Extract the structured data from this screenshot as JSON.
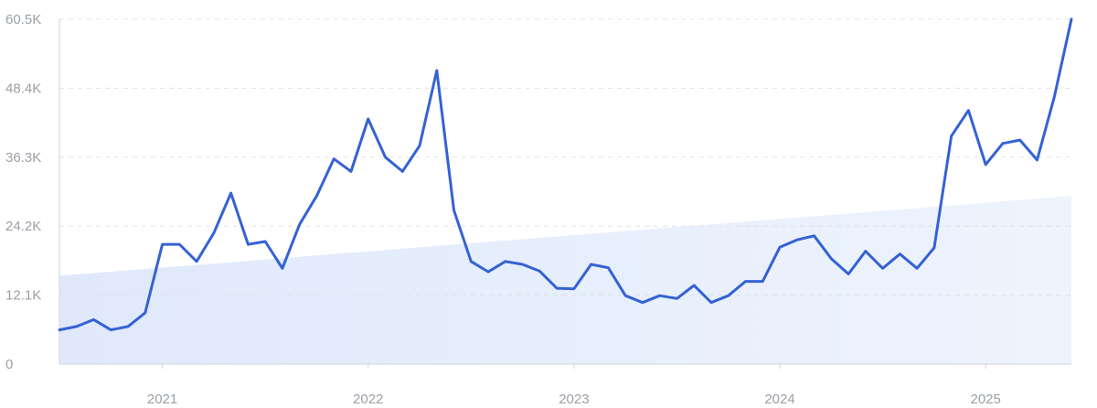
{
  "chart_data": {
    "type": "line",
    "title": "",
    "xlabel": "",
    "ylabel": "",
    "ylim": [
      0,
      60500
    ],
    "y_tick_labels": [
      "0",
      "12.1K",
      "24.2K",
      "36.3K",
      "48.4K",
      "60.5K"
    ],
    "y_tick_values": [
      0,
      12100,
      24200,
      36300,
      48400,
      60500
    ],
    "x_tick_labels": [
      "2021",
      "2022",
      "2023",
      "2024",
      "2025"
    ],
    "x_tick_values": [
      "2021-01",
      "2022-01",
      "2023-01",
      "2024-01",
      "2025-01"
    ],
    "grid": true,
    "colors": {
      "line": "#3562d4",
      "trend_fill": "#e6effc",
      "grid": "#dfe3e8",
      "text": "#9aa0a6"
    },
    "trend_band": {
      "start": {
        "x": "2020-07",
        "y": 15500
      },
      "end": {
        "x": "2025-06",
        "y": 29500
      }
    },
    "series": [
      {
        "name": "",
        "x": [
          "2020-07",
          "2020-08",
          "2020-09",
          "2020-10",
          "2020-11",
          "2020-12",
          "2021-01",
          "2021-02",
          "2021-03",
          "2021-04",
          "2021-05",
          "2021-06",
          "2021-07",
          "2021-08",
          "2021-09",
          "2021-10",
          "2021-11",
          "2021-12",
          "2022-01",
          "2022-02",
          "2022-03",
          "2022-04",
          "2022-05",
          "2022-06",
          "2022-07",
          "2022-08",
          "2022-09",
          "2022-10",
          "2022-11",
          "2022-12",
          "2023-01",
          "2023-02",
          "2023-03",
          "2023-04",
          "2023-05",
          "2023-06",
          "2023-07",
          "2023-08",
          "2023-09",
          "2023-10",
          "2023-11",
          "2023-12",
          "2024-01",
          "2024-02",
          "2024-03",
          "2024-04",
          "2024-05",
          "2024-06",
          "2024-07",
          "2024-08",
          "2024-09",
          "2024-10",
          "2024-11",
          "2024-12",
          "2025-01",
          "2025-02",
          "2025-03",
          "2025-04",
          "2025-05",
          "2025-06"
        ],
        "values": [
          6000,
          6600,
          7800,
          6000,
          6600,
          9000,
          21000,
          21000,
          18000,
          23000,
          30000,
          21000,
          21500,
          16800,
          24500,
          29500,
          36000,
          33800,
          43000,
          36300,
          33800,
          38300,
          51500,
          27000,
          18000,
          16200,
          18000,
          17500,
          16300,
          13300,
          13200,
          17500,
          16900,
          12000,
          10800,
          12000,
          11500,
          13800,
          10800,
          12000,
          14500,
          14500,
          20500,
          21800,
          22500,
          18500,
          15800,
          19800,
          16800,
          19300,
          16800,
          20400,
          40000,
          44500,
          35000,
          38700,
          39300,
          35800,
          46800,
          60500
        ]
      }
    ]
  }
}
